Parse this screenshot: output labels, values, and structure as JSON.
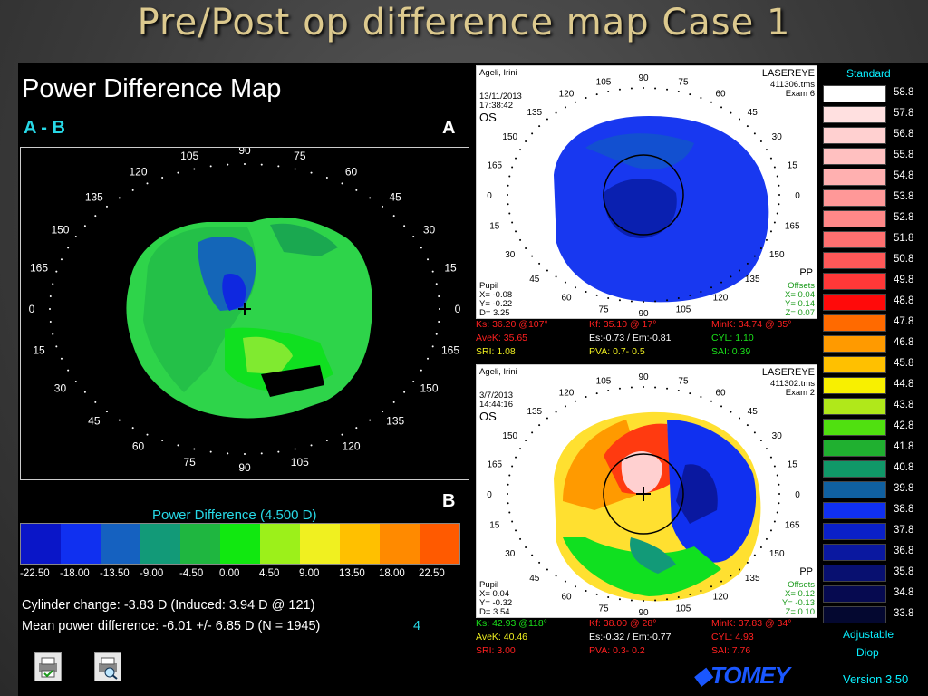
{
  "slide_title": "Pre/Post op difference map Case 1",
  "left_panel": {
    "title": "Power Difference Map",
    "subtitle": "A - B",
    "letter_a": "A",
    "letter_b": "B",
    "angles": [
      "90",
      "75",
      "60",
      "45",
      "30",
      "15",
      "0",
      "165",
      "150",
      "135",
      "120",
      "105",
      "15",
      "30",
      "45",
      "60",
      "75",
      "90",
      "105",
      "120",
      "135",
      "150",
      "165",
      "0"
    ],
    "power_difference_label": "Power Difference (4.500 D)",
    "scale_colors": [
      "#0a16c8",
      "#1030f0",
      "#1561c0",
      "#129a78",
      "#1fb640",
      "#11e810",
      "#9cf01a",
      "#f0f020",
      "#ffc000",
      "#ff8a00",
      "#ff5a00"
    ],
    "scale_ticks": [
      "-22.50",
      "-18.00",
      "-13.50",
      "-9.00",
      "-4.50",
      "0.00",
      "4.50",
      "9.00",
      "13.50",
      "18.00",
      "22.50"
    ],
    "cylinder_change": "Cylinder change: -3.83 D (Induced:  3.94 D @ 121)",
    "mean_power": "Mean power difference: -6.01 +/-  6.85 D (N = 1945)",
    "mean_power_tag": "4"
  },
  "map_top": {
    "patient": "Ageli, Irini",
    "date": "13/11/2013",
    "time": "17:38:42",
    "eye": "OS",
    "brand": "LASEREYE",
    "file": "411306.tms",
    "exam": "Exam 6",
    "pupil": "Pupil",
    "px": "X= -0.08",
    "py": "Y= -0.22",
    "pd": "D=  3.25",
    "pp": "PP",
    "offsets": "Offsets",
    "ox": "X= 0.04",
    "oy": "Y= 0.14",
    "oz": "Z= 0.07",
    "ks": "Ks: 36.20 @107°",
    "kf": "Kf: 35.10 @ 17°",
    "mink": "MinK: 34.74 @ 35°",
    "avek": "AveK: 35.65",
    "es": "Es:-0.73 / Em:-0.81",
    "cyl": "CYL:  1.10",
    "sri": "SRI:  1.08",
    "pva": "PVA:  0.7- 0.5",
    "sai": "SAI:  0.39"
  },
  "map_bottom": {
    "patient": "Ageli, Irini",
    "date": "3/7/2013",
    "time": "14:44:16",
    "eye": "OS",
    "brand": "LASEREYE",
    "file": "411302.tms",
    "exam": "Exam 2",
    "pupil": "Pupil",
    "px": "X=  0.04",
    "py": "Y= -0.32",
    "pd": "D=  3.54",
    "pp": "PP",
    "offsets": "Offsets",
    "ox": "X= 0.12",
    "oy": "Y= -0.13",
    "oz": "Z= 0.10",
    "ks": "Ks: 42.93 @118°",
    "kf": "Kf: 38.00 @ 28°",
    "mink": "MinK: 37.83 @ 34°",
    "avek": "AveK: 40.46",
    "es": "Es:-0.32 / Em:-0.77",
    "cyl": "CYL:  4.93",
    "sri": "SRI:  3.00",
    "pva": "PVA:  0.3- 0.2",
    "sai": "SAI:  7.76"
  },
  "legend": {
    "title": "Standard",
    "values": [
      "58.8",
      "57.8",
      "56.8",
      "55.8",
      "54.8",
      "53.8",
      "52.8",
      "51.8",
      "50.8",
      "49.8",
      "48.8",
      "47.8",
      "46.8",
      "45.8",
      "44.8",
      "43.8",
      "42.8",
      "41.8",
      "40.8",
      "39.8",
      "38.8",
      "37.8",
      "36.8",
      "35.8",
      "34.8",
      "33.8"
    ],
    "colors": [
      "#ffffff",
      "#ffe0e0",
      "#ffd0d0",
      "#ffc0c0",
      "#ffb0b0",
      "#ff9898",
      "#ff8888",
      "#ff7070",
      "#ff5858",
      "#ff3838",
      "#ff0a0a",
      "#ff6a00",
      "#ff9a00",
      "#ffc000",
      "#f8f000",
      "#b0e81a",
      "#50e010",
      "#20b030",
      "#109868",
      "#1060a0",
      "#1030f0",
      "#0a20c8",
      "#0a18a0",
      "#081070",
      "#060a50",
      "#040830"
    ],
    "adjustable": "Adjustable",
    "diop": "Diop",
    "version": "Version 3.50",
    "brand": "TOMEY"
  },
  "colors": {
    "title": "#dcc98e",
    "cyan": "#27d8e6",
    "tomey": "#1a57ff"
  },
  "icons": [
    "printer-check-icon",
    "printer-search-icon"
  ]
}
